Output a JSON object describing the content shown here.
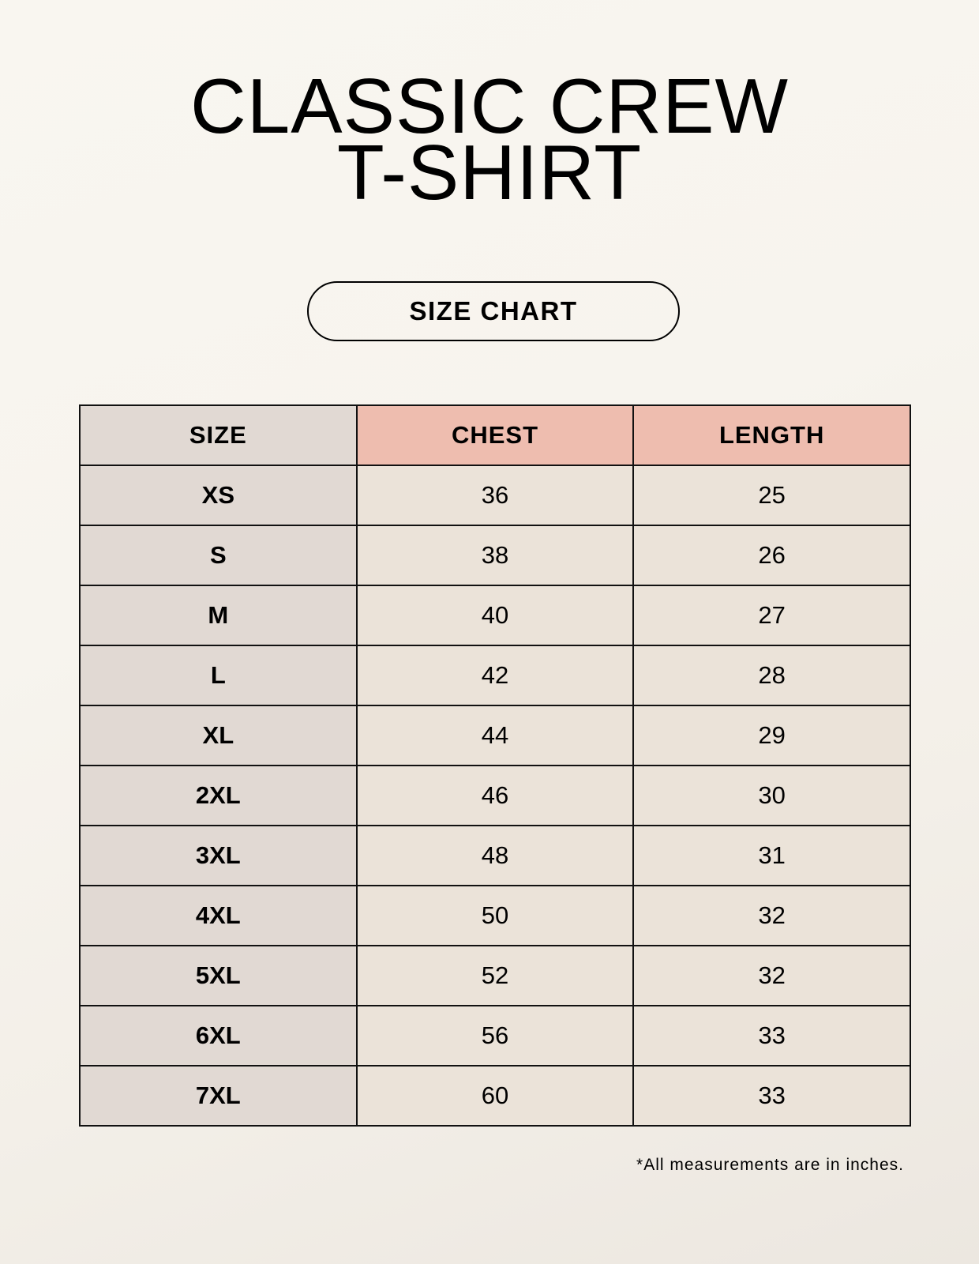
{
  "title": {
    "line1": "CLASSIC CREW",
    "line2": "T-SHIRT"
  },
  "badge": "SIZE CHART",
  "table": {
    "headers": [
      "SIZE",
      "CHEST",
      "LENGTH"
    ],
    "rows": [
      [
        "XS",
        "36",
        "25"
      ],
      [
        "S",
        "38",
        "26"
      ],
      [
        "M",
        "40",
        "27"
      ],
      [
        "L",
        "42",
        "28"
      ],
      [
        "XL",
        "44",
        "29"
      ],
      [
        "2XL",
        "46",
        "30"
      ],
      [
        "3XL",
        "48",
        "31"
      ],
      [
        "4XL",
        "50",
        "32"
      ],
      [
        "5XL",
        "52",
        "32"
      ],
      [
        "6XL",
        "56",
        "33"
      ],
      [
        "7XL",
        "60",
        "33"
      ]
    ]
  },
  "footnote": "*All measurements are in inches.",
  "colors": {
    "size_column": "#e1d9d3",
    "header_accent": "#eebdaf",
    "cell": "#ebe3d9"
  }
}
